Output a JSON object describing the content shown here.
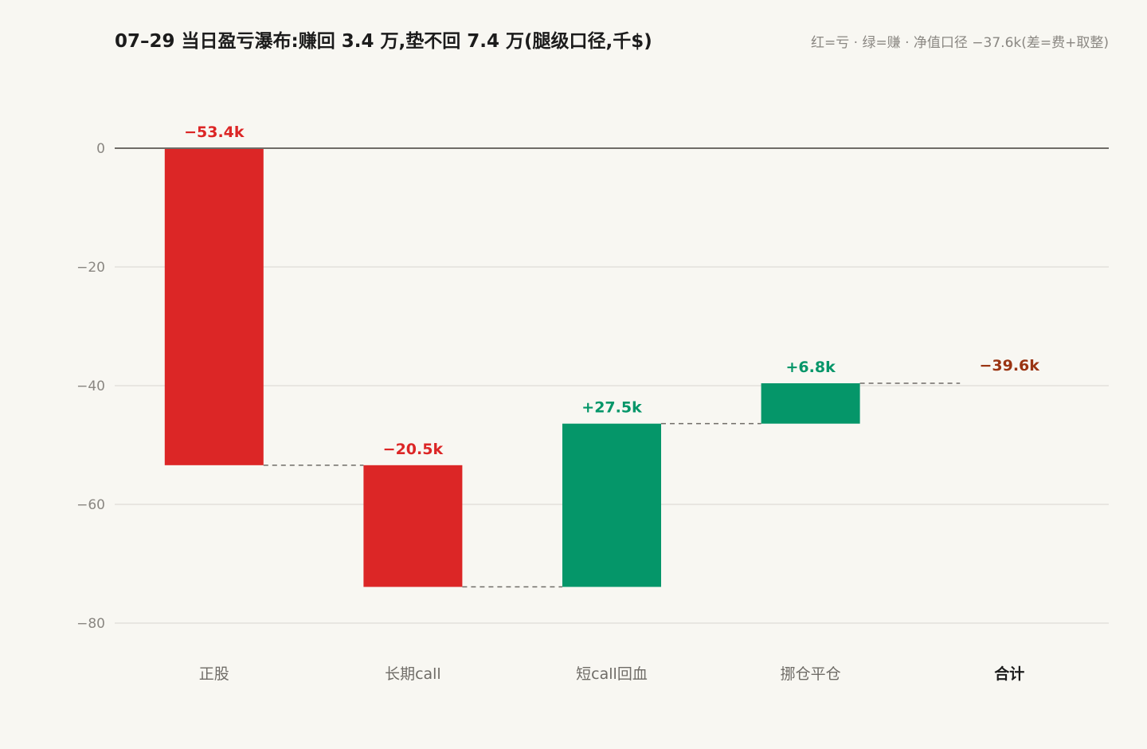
{
  "chart_data": {
    "type": "waterfall",
    "title": "07–29 当日盈亏瀑布:赚回 3.4 万,垫不回 7.4 万(腿级口径,千$)",
    "subtitle": "红=亏 · 绿=赚 · 净值口径 −37.6k(差=费+取整)",
    "y_ticks": [
      0,
      -20,
      -40,
      -60,
      -80
    ],
    "ylim": [
      -80,
      0
    ],
    "grid": true,
    "steps": [
      {
        "category": "正股",
        "value": -53.4,
        "label": "−53.4k",
        "kind": "loss"
      },
      {
        "category": "长期call",
        "value": -20.5,
        "label": "−20.5k",
        "kind": "loss"
      },
      {
        "category": "短call回血",
        "value": 27.5,
        "label": "+27.5k",
        "kind": "gain"
      },
      {
        "category": "挪仓平仓",
        "value": 6.8,
        "label": "+6.8k",
        "kind": "gain"
      },
      {
        "category": "合计",
        "value": -39.6,
        "label": "−39.6k",
        "kind": "total"
      }
    ],
    "colors": {
      "loss": "#dc2626",
      "gain": "#059669",
      "total_label": "#9a3412",
      "zero_line": "#6f6c67",
      "grid": "#e3e1db",
      "connector": "#6f6c67"
    }
  }
}
